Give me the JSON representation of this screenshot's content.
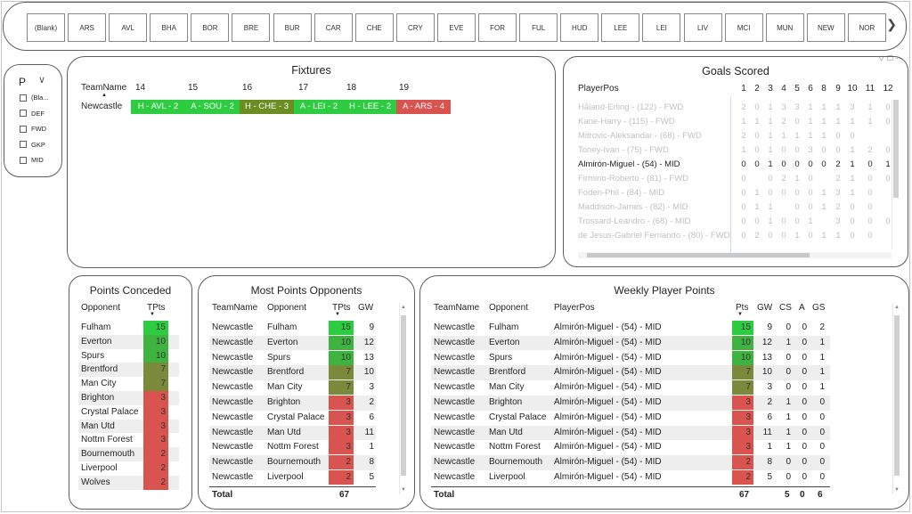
{
  "team_slicer": {
    "teams": [
      "(Blank)",
      "ARS",
      "AVL",
      "BHA",
      "BOR",
      "BRE",
      "BUR",
      "CAR",
      "CHE",
      "CRY",
      "EVE",
      "FOR",
      "FUL",
      "HUD",
      "LEE",
      "LEI",
      "LIV",
      "MCI",
      "MUN",
      "NEW",
      "NOR"
    ],
    "next_icon": "chevron-right-icon"
  },
  "position_slicer": {
    "header": "P",
    "items": [
      "(Bla...",
      "DEF",
      "FWD",
      "GKP",
      "MID"
    ]
  },
  "fixtures": {
    "title": "Fixtures",
    "col_team": "TeamName",
    "gameweeks": [
      "14",
      "15",
      "16",
      "17",
      "18",
      "19"
    ],
    "row_team": "Newcastle",
    "cells": [
      {
        "text": "H - AVL - 2",
        "color": "#2ecc40"
      },
      {
        "text": "A - SOU - 2",
        "color": "#2ecc40"
      },
      {
        "text": "H - CHE - 3",
        "color": "#6b8e23"
      },
      {
        "text": "A - LEI - 2",
        "color": "#2ecc40"
      },
      {
        "text": "H - LEE - 2",
        "color": "#2ecc40"
      },
      {
        "text": "A - ARS - 4",
        "color": "#d9534f"
      }
    ]
  },
  "goals": {
    "title": "Goals Scored",
    "col_player": "PlayerPos",
    "gw_headers": [
      "1",
      "2",
      "3",
      "4",
      "5",
      "6",
      "8",
      "9",
      "10",
      "11",
      "12"
    ],
    "rows": [
      {
        "name": "Håland-Erling - (122) - FWD",
        "vals": [
          "2",
          "0",
          "1",
          "3",
          "3",
          "1",
          "1",
          "1",
          "3",
          "1",
          "0"
        ],
        "selected": false
      },
      {
        "name": "Kane-Harry - (115) - FWD",
        "vals": [
          "1",
          "1",
          "1",
          "2",
          "0",
          "1",
          "1",
          "1",
          "1",
          "1",
          "0"
        ],
        "selected": false
      },
      {
        "name": "Mitrovic-Aleksandar - (68) - FWD",
        "vals": [
          "2",
          "0",
          "1",
          "1",
          "1",
          "1",
          "1",
          "0",
          "0",
          "",
          ""
        ],
        "selected": false
      },
      {
        "name": "Toney-Ivan - (75) - FWD",
        "vals": [
          "1",
          "0",
          "1",
          "0",
          "0",
          "3",
          "0",
          "0",
          "1",
          "2",
          "0"
        ],
        "selected": false
      },
      {
        "name": "Almirón-Miguel - (54) - MID",
        "vals": [
          "0",
          "0",
          "1",
          "0",
          "0",
          "0",
          "0",
          "2",
          "1",
          "0",
          "1"
        ],
        "selected": true
      },
      {
        "name": "Firmino-Roberto - (81) - FWD",
        "vals": [
          "0",
          "",
          "0",
          "2",
          "1",
          "0",
          "",
          "2",
          "1",
          "0",
          "0"
        ],
        "selected": false
      },
      {
        "name": "Foden-Phil - (84) - MID",
        "vals": [
          "0",
          "1",
          "0",
          "0",
          "0",
          "0",
          "1",
          "3",
          "1",
          "0",
          ""
        ],
        "selected": false
      },
      {
        "name": "Maddison-James - (82) - MID",
        "vals": [
          "0",
          "1",
          "1",
          "",
          "0",
          "0",
          "1",
          "2",
          "0",
          "0",
          ""
        ],
        "selected": false
      },
      {
        "name": "Trossard-Leandro - (68) - MID",
        "vals": [
          "0",
          "0",
          "1",
          "0",
          "0",
          "1",
          "",
          "3",
          "0",
          "0",
          "0"
        ],
        "selected": false
      },
      {
        "name": "de Jesus-Gabriel Fernando - (80) - FWD",
        "vals": [
          "0",
          "2",
          "0",
          "0",
          "1",
          "0",
          "1",
          "1",
          "0",
          "0",
          ""
        ],
        "selected": false
      }
    ]
  },
  "conceded": {
    "title": "Points Conceded",
    "col_opponent": "Opponent",
    "col_tpts": "TPts",
    "rows": [
      {
        "opponent": "Fulham",
        "tpts": "15",
        "color": "#2ecc40"
      },
      {
        "opponent": "Everton",
        "tpts": "10",
        "color": "#3fb340"
      },
      {
        "opponent": "Spurs",
        "tpts": "10",
        "color": "#3fb340"
      },
      {
        "opponent": "Brentford",
        "tpts": "7",
        "color": "#7a8a3a"
      },
      {
        "opponent": "Man City",
        "tpts": "7",
        "color": "#7a8a3a"
      },
      {
        "opponent": "Brighton",
        "tpts": "3",
        "color": "#d9534f"
      },
      {
        "opponent": "Crystal Palace",
        "tpts": "3",
        "color": "#d9534f"
      },
      {
        "opponent": "Man Utd",
        "tpts": "3",
        "color": "#d9534f"
      },
      {
        "opponent": "Nottm Forest",
        "tpts": "3",
        "color": "#d9534f"
      },
      {
        "opponent": "Bournemouth",
        "tpts": "2",
        "color": "#d9534f"
      },
      {
        "opponent": "Liverpool",
        "tpts": "2",
        "color": "#d9534f"
      },
      {
        "opponent": "Wolves",
        "tpts": "2",
        "color": "#d9534f"
      }
    ]
  },
  "opponents": {
    "title": "Most Points Opponents",
    "cols": [
      "TeamName",
      "Opponent",
      "TPts",
      "GW"
    ],
    "rows": [
      {
        "team": "Newcastle",
        "opponent": "Fulham",
        "tpts": "15",
        "gw": "9",
        "color": "#2ecc40"
      },
      {
        "team": "Newcastle",
        "opponent": "Everton",
        "tpts": "10",
        "gw": "12",
        "color": "#3fb340"
      },
      {
        "team": "Newcastle",
        "opponent": "Spurs",
        "tpts": "10",
        "gw": "13",
        "color": "#3fb340"
      },
      {
        "team": "Newcastle",
        "opponent": "Brentford",
        "tpts": "7",
        "gw": "10",
        "color": "#7a8a3a"
      },
      {
        "team": "Newcastle",
        "opponent": "Man City",
        "tpts": "7",
        "gw": "3",
        "color": "#7a8a3a"
      },
      {
        "team": "Newcastle",
        "opponent": "Brighton",
        "tpts": "3",
        "gw": "2",
        "color": "#d9534f"
      },
      {
        "team": "Newcastle",
        "opponent": "Crystal Palace",
        "tpts": "3",
        "gw": "6",
        "color": "#d9534f"
      },
      {
        "team": "Newcastle",
        "opponent": "Man Utd",
        "tpts": "3",
        "gw": "11",
        "color": "#d9534f"
      },
      {
        "team": "Newcastle",
        "opponent": "Nottm Forest",
        "tpts": "3",
        "gw": "1",
        "color": "#d9534f"
      },
      {
        "team": "Newcastle",
        "opponent": "Bournemouth",
        "tpts": "2",
        "gw": "8",
        "color": "#d9534f"
      },
      {
        "team": "Newcastle",
        "opponent": "Liverpool",
        "tpts": "2",
        "gw": "5",
        "color": "#d9534f"
      }
    ],
    "total_label": "Total",
    "total_tpts": "67"
  },
  "weekly": {
    "title": "Weekly Player Points",
    "cols": [
      "TeamName",
      "Opponent",
      "PlayerPos",
      "Pts",
      "GW",
      "CS",
      "A",
      "GS"
    ],
    "rows": [
      {
        "team": "Newcastle",
        "opponent": "Fulham",
        "player": "Almirón-Miguel - (54) - MID",
        "pts": "15",
        "gw": "9",
        "cs": "0",
        "a": "0",
        "gs": "2",
        "color": "#2ecc40"
      },
      {
        "team": "Newcastle",
        "opponent": "Everton",
        "player": "Almirón-Miguel - (54) - MID",
        "pts": "10",
        "gw": "12",
        "cs": "1",
        "a": "0",
        "gs": "1",
        "color": "#3fb340"
      },
      {
        "team": "Newcastle",
        "opponent": "Spurs",
        "player": "Almirón-Miguel - (54) - MID",
        "pts": "10",
        "gw": "13",
        "cs": "0",
        "a": "0",
        "gs": "1",
        "color": "#3fb340"
      },
      {
        "team": "Newcastle",
        "opponent": "Brentford",
        "player": "Almirón-Miguel - (54) - MID",
        "pts": "7",
        "gw": "10",
        "cs": "0",
        "a": "0",
        "gs": "1",
        "color": "#7a8a3a"
      },
      {
        "team": "Newcastle",
        "opponent": "Man City",
        "player": "Almirón-Miguel - (54) - MID",
        "pts": "7",
        "gw": "3",
        "cs": "0",
        "a": "0",
        "gs": "1",
        "color": "#7a8a3a"
      },
      {
        "team": "Newcastle",
        "opponent": "Brighton",
        "player": "Almirón-Miguel - (54) - MID",
        "pts": "3",
        "gw": "2",
        "cs": "1",
        "a": "0",
        "gs": "0",
        "color": "#d9534f"
      },
      {
        "team": "Newcastle",
        "opponent": "Crystal Palace",
        "player": "Almirón-Miguel - (54) - MID",
        "pts": "3",
        "gw": "6",
        "cs": "1",
        "a": "0",
        "gs": "0",
        "color": "#d9534f"
      },
      {
        "team": "Newcastle",
        "opponent": "Man Utd",
        "player": "Almirón-Miguel - (54) - MID",
        "pts": "3",
        "gw": "11",
        "cs": "1",
        "a": "0",
        "gs": "0",
        "color": "#d9534f"
      },
      {
        "team": "Newcastle",
        "opponent": "Nottm Forest",
        "player": "Almirón-Miguel - (54) - MID",
        "pts": "3",
        "gw": "1",
        "cs": "1",
        "a": "0",
        "gs": "0",
        "color": "#d9534f"
      },
      {
        "team": "Newcastle",
        "opponent": "Bournemouth",
        "player": "Almirón-Miguel - (54) - MID",
        "pts": "2",
        "gw": "8",
        "cs": "0",
        "a": "0",
        "gs": "0",
        "color": "#d9534f"
      },
      {
        "team": "Newcastle",
        "opponent": "Liverpool",
        "player": "Almirón-Miguel - (54) - MID",
        "pts": "2",
        "gw": "5",
        "cs": "0",
        "a": "0",
        "gs": "0",
        "color": "#d9534f"
      }
    ],
    "total_label": "Total",
    "total_pts": "67",
    "total_cs": "5",
    "total_a": "0",
    "total_gs": "6"
  }
}
